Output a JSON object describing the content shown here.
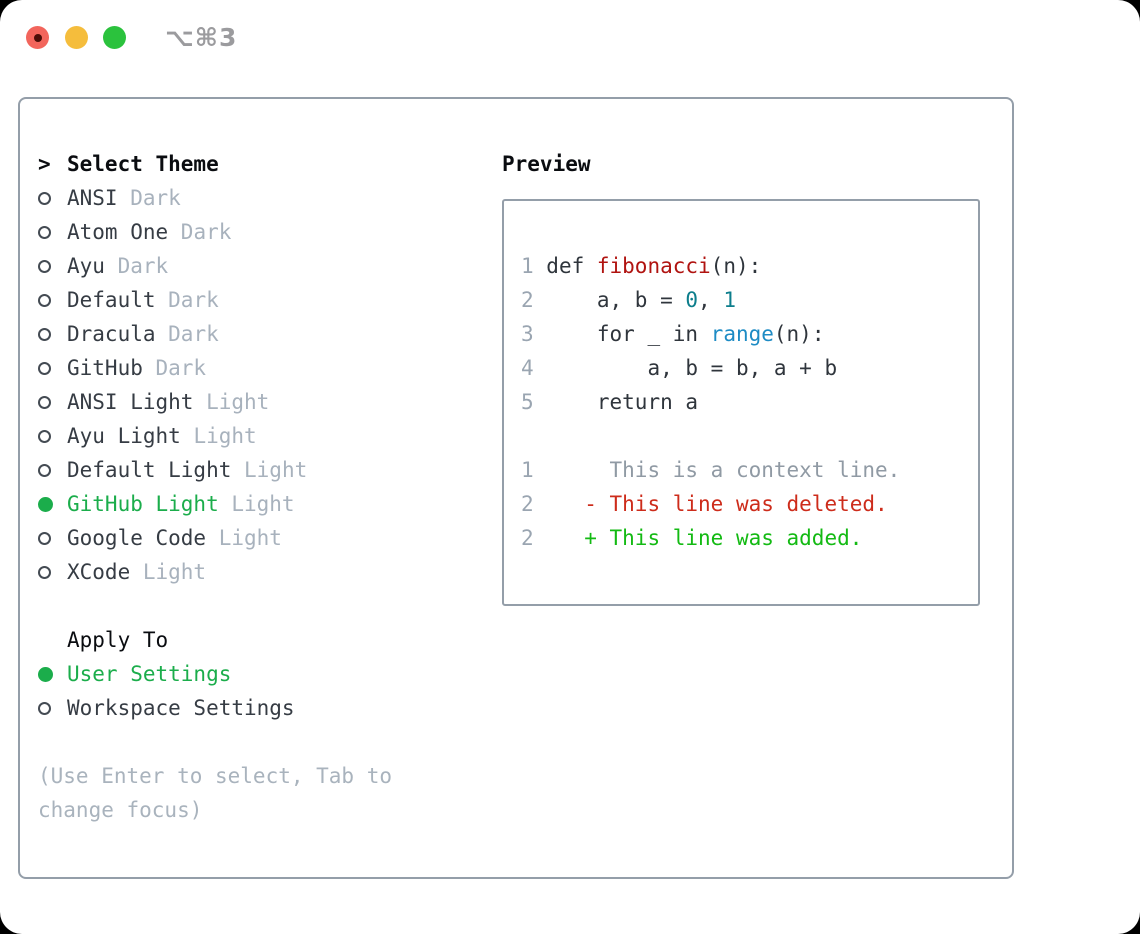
{
  "titlebar": {
    "title": "⌥⌘3",
    "buttons": [
      {
        "name": "close",
        "color": "#f2655c",
        "dot": "#4a0d08"
      },
      {
        "name": "minimize",
        "color": "#f5bd3c"
      },
      {
        "name": "maximize",
        "color": "#2bc23d"
      }
    ]
  },
  "theme_selector": {
    "prompt": ">",
    "heading": "Select Theme",
    "themes": [
      {
        "name": "ANSI",
        "tag": "Dark",
        "selected": false
      },
      {
        "name": "Atom One",
        "tag": "Dark",
        "selected": false
      },
      {
        "name": "Ayu",
        "tag": "Dark",
        "selected": false
      },
      {
        "name": "Default",
        "tag": "Dark",
        "selected": false
      },
      {
        "name": "Dracula",
        "tag": "Dark",
        "selected": false
      },
      {
        "name": "GitHub",
        "tag": "Dark",
        "selected": false
      },
      {
        "name": "ANSI Light",
        "tag": "Light",
        "selected": false
      },
      {
        "name": "Ayu Light",
        "tag": "Light",
        "selected": false
      },
      {
        "name": "Default Light",
        "tag": "Light",
        "selected": false
      },
      {
        "name": "GitHub Light",
        "tag": "Light",
        "selected": true
      },
      {
        "name": "Google Code",
        "tag": "Light",
        "selected": false
      },
      {
        "name": "XCode",
        "tag": "Light",
        "selected": false
      }
    ],
    "apply_to": {
      "heading": "Apply To",
      "options": [
        {
          "name": "User Settings",
          "selected": true
        },
        {
          "name": "Workspace Settings",
          "selected": false
        }
      ]
    },
    "hint": "(Use Enter to select, Tab to change focus)"
  },
  "preview": {
    "heading": "Preview",
    "code_lines": [
      {
        "num": "1",
        "tokens": [
          {
            "t": "def ",
            "c": "plain"
          },
          {
            "t": "fibonacci",
            "c": "function"
          },
          {
            "t": "(n):",
            "c": "plain"
          }
        ]
      },
      {
        "num": "2",
        "tokens": [
          {
            "t": "    a, b = ",
            "c": "plain"
          },
          {
            "t": "0",
            "c": "number"
          },
          {
            "t": ", ",
            "c": "plain"
          },
          {
            "t": "1",
            "c": "number"
          }
        ]
      },
      {
        "num": "3",
        "tokens": [
          {
            "t": "    for _ in ",
            "c": "plain"
          },
          {
            "t": "range",
            "c": "builtin"
          },
          {
            "t": "(n):",
            "c": "plain"
          }
        ]
      },
      {
        "num": "4",
        "tokens": [
          {
            "t": "        a, b = b, a + b",
            "c": "plain"
          }
        ]
      },
      {
        "num": "5",
        "tokens": [
          {
            "t": "    return a",
            "c": "plain"
          }
        ]
      }
    ],
    "diff_lines": [
      {
        "num": "1",
        "tokens": [
          {
            "t": "     This is a context line.",
            "c": "context"
          }
        ]
      },
      {
        "num": "2",
        "tokens": [
          {
            "t": "   - This line was deleted.",
            "c": "deleted"
          }
        ]
      },
      {
        "num": "2",
        "tokens": [
          {
            "t": "   + This line was added.",
            "c": "added"
          }
        ]
      }
    ]
  },
  "colors": {
    "selected_green": "#1bad4b",
    "function_red": "#b01310",
    "builtin_blue": "#1d8bc4",
    "number_teal": "#0d7e8c",
    "deleted_red": "#cd2c1b",
    "added_green": "#13ba13",
    "line_number_gray": "#9aa5b1",
    "context_gray": "#909aa4",
    "tag_gray": "#a8b2bd",
    "border_gray": "#949ea9",
    "code_plain": "#2f353c",
    "heading_black": "#0a0c10",
    "hint_gray": "#a9b3bd",
    "item_text": "#363c44",
    "circle_outline": "#444b53",
    "title_gray": "#9b9b9e"
  }
}
